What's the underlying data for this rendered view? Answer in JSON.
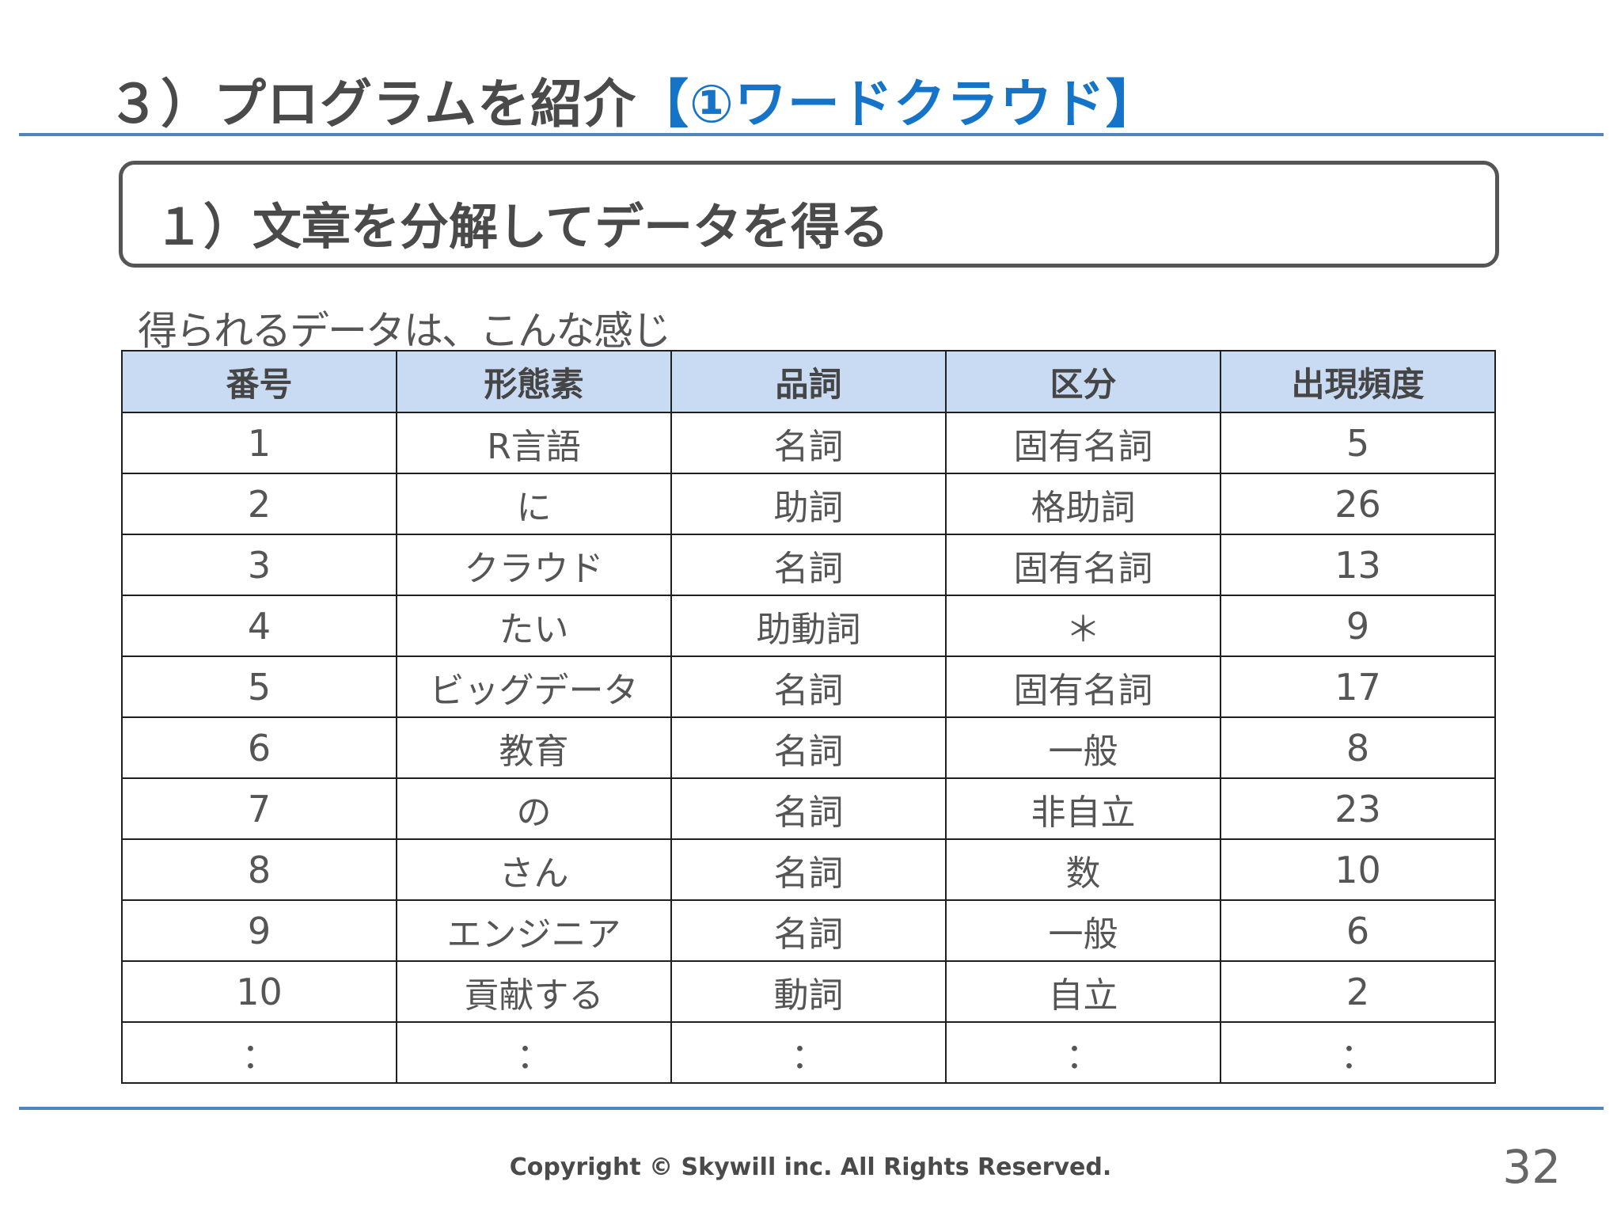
{
  "slide": {
    "title_prefix": "３）プログラムを紹介",
    "title_accent": "【①ワードクラウド】",
    "section_title": "１）文章を分解してデータを得る",
    "lead_text": "得られるデータは、こんな感じ"
  },
  "table": {
    "headers": [
      "番号",
      "形態素",
      "品詞",
      "区分",
      "出現頻度"
    ],
    "rows": [
      [
        "1",
        "R言語",
        "名詞",
        "固有名詞",
        "5"
      ],
      [
        "2",
        "に",
        "助詞",
        "格助詞",
        "26"
      ],
      [
        "3",
        "クラウド",
        "名詞",
        "固有名詞",
        "13"
      ],
      [
        "4",
        "たい",
        "助動詞",
        "＊",
        "9"
      ],
      [
        "5",
        "ビッグデータ",
        "名詞",
        "固有名詞",
        "17"
      ],
      [
        "6",
        "教育",
        "名詞",
        "一般",
        "8"
      ],
      [
        "7",
        "の",
        "名詞",
        "非自立",
        "23"
      ],
      [
        "8",
        "さん",
        "名詞",
        "数",
        "10"
      ],
      [
        "9",
        "エンジニア",
        "名詞",
        "一般",
        "6"
      ],
      [
        "10",
        "貢献する",
        "動詞",
        "自立",
        "2"
      ],
      [
        "：",
        "：",
        "：",
        "：",
        "："
      ]
    ]
  },
  "footer": {
    "copyright": "Copyright © Skywill inc. All Rights Reserved.",
    "page_number": "32"
  }
}
